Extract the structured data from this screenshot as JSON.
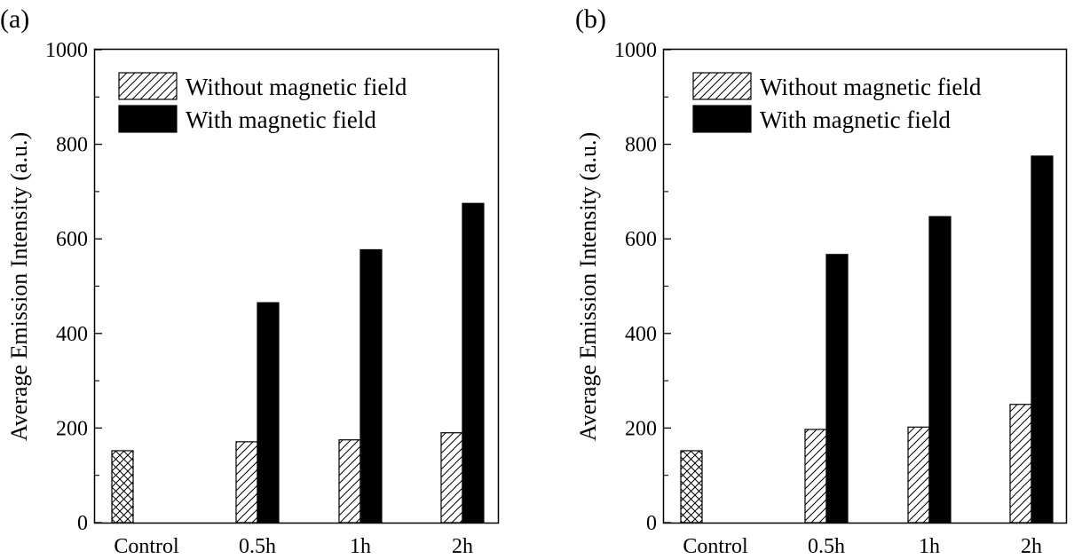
{
  "chart_data": [
    {
      "type": "bar",
      "panel_label": "(a)",
      "categories": [
        "Control",
        "0.5h",
        "1h",
        "2h"
      ],
      "series": [
        {
          "name": "Without magnetic field",
          "values": [
            152,
            171,
            175,
            190
          ],
          "pattern": "hatch"
        },
        {
          "name": "With magnetic field",
          "values": [
            null,
            465,
            577,
            675
          ],
          "color": "#000000"
        }
      ],
      "control_pattern": "crosshatch",
      "ylabel": "Average Emission Intensity (a.u.)",
      "xlabel": "",
      "ylim": [
        0,
        1000
      ],
      "yticks": [
        0,
        200,
        400,
        600,
        800,
        1000
      ],
      "legend_position": "top-left",
      "grid": false
    },
    {
      "type": "bar",
      "panel_label": "(b)",
      "categories": [
        "Control",
        "0.5h",
        "1h",
        "2h"
      ],
      "series": [
        {
          "name": "Without magnetic field",
          "values": [
            152,
            197,
            202,
            250
          ],
          "pattern": "hatch"
        },
        {
          "name": "With magnetic field",
          "values": [
            null,
            567,
            647,
            775
          ],
          "color": "#000000"
        }
      ],
      "control_pattern": "crosshatch",
      "ylabel": "Average Emission Intensity (a.u.)",
      "xlabel": "",
      "ylim": [
        0,
        1000
      ],
      "yticks": [
        0,
        200,
        400,
        600,
        800,
        1000
      ],
      "legend_position": "top-left",
      "grid": false
    }
  ]
}
